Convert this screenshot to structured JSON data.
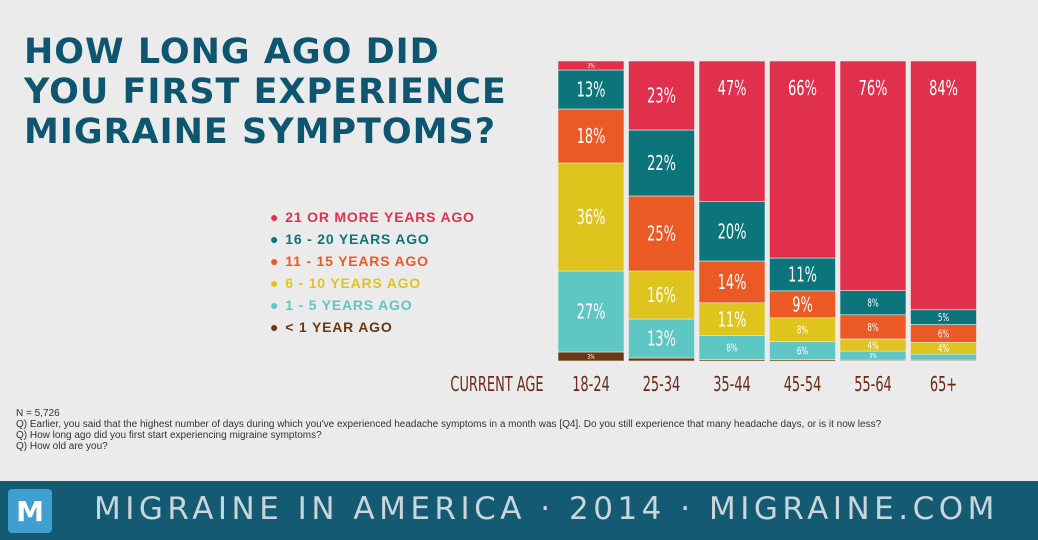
{
  "header": {
    "title_lines": [
      "HOW LONG AGO DID",
      "YOU FIRST EXPERIENCE",
      "MIGRAINE SYMPTOMS?"
    ]
  },
  "colors": {
    "title": "#0e5670",
    "background": "#ebebeb",
    "footer_bg": "#145a73"
  },
  "legend": [
    {
      "label": "21 OR MORE YEARS AGO",
      "color": "#e0304b"
    },
    {
      "label": "16 - 20 YEARS AGO",
      "color": "#0c747b"
    },
    {
      "label": "11 - 15 YEARS AGO",
      "color": "#eb5a25"
    },
    {
      "label": "6 - 10 YEARS AGO",
      "color": "#dfc41e"
    },
    {
      "label": "1 - 5 YEARS AGO",
      "color": "#5ec7c3"
    },
    {
      "label": "< 1 YEAR AGO",
      "color": "#6b3816"
    }
  ],
  "chart_data": {
    "type": "bar",
    "stacked": true,
    "percent": true,
    "xlabel": "CURRENT AGE",
    "categories": [
      "18-24",
      "25-34",
      "35-44",
      "45-54",
      "55-64",
      "65+"
    ],
    "series": [
      {
        "name": "< 1 YEAR AGO",
        "color": "#6b3816",
        "values": [
          3,
          1,
          0.5,
          0.5,
          0.3,
          0.3
        ],
        "labels": [
          "3%",
          "",
          "",
          "",
          "",
          ""
        ]
      },
      {
        "name": "1 - 5 YEARS AGO",
        "color": "#5ec7c3",
        "values": [
          27,
          13,
          8,
          6,
          3,
          2
        ],
        "labels": [
          "27%",
          "13%",
          "8%",
          "6%",
          "3%",
          ""
        ]
      },
      {
        "name": "6 - 10 YEARS AGO",
        "color": "#dfc41e",
        "values": [
          36,
          16,
          11,
          8,
          4,
          4
        ],
        "labels": [
          "36%",
          "16%",
          "11%",
          "8%",
          "4%",
          "4%"
        ]
      },
      {
        "name": "11 - 15 YEARS AGO",
        "color": "#eb5a25",
        "values": [
          18,
          25,
          14,
          9,
          8,
          6
        ],
        "labels": [
          "18%",
          "25%",
          "14%",
          "9%",
          "8%",
          "6%"
        ]
      },
      {
        "name": "16 - 20 YEARS AGO",
        "color": "#0c747b",
        "values": [
          13,
          22,
          20,
          11,
          8,
          5
        ],
        "labels": [
          "13%",
          "22%",
          "20%",
          "11%",
          "8%",
          "5%"
        ]
      },
      {
        "name": "21 OR MORE YEARS AGO",
        "color": "#e0304b",
        "values": [
          3,
          23,
          47,
          66,
          76,
          84
        ],
        "labels": [
          "3%",
          "23%",
          "47%",
          "66%",
          "76%",
          "84%"
        ]
      }
    ],
    "ylim": [
      0,
      100
    ]
  },
  "notes": {
    "n": "N = 5,726",
    "q1": "Q) Earlier, you said that the highest number of days during which you've experienced headache symptoms in a month was [Q4]. Do you still experience that many headache days, or is it now less?",
    "q2": "Q) How long ago did you first start experiencing migraine symptoms?",
    "q3": "Q) How old are you?"
  },
  "footer": {
    "logo_letter": "M",
    "text": "MIGRAINE IN AMERICA · 2014 · MIGRAINE.COM"
  }
}
